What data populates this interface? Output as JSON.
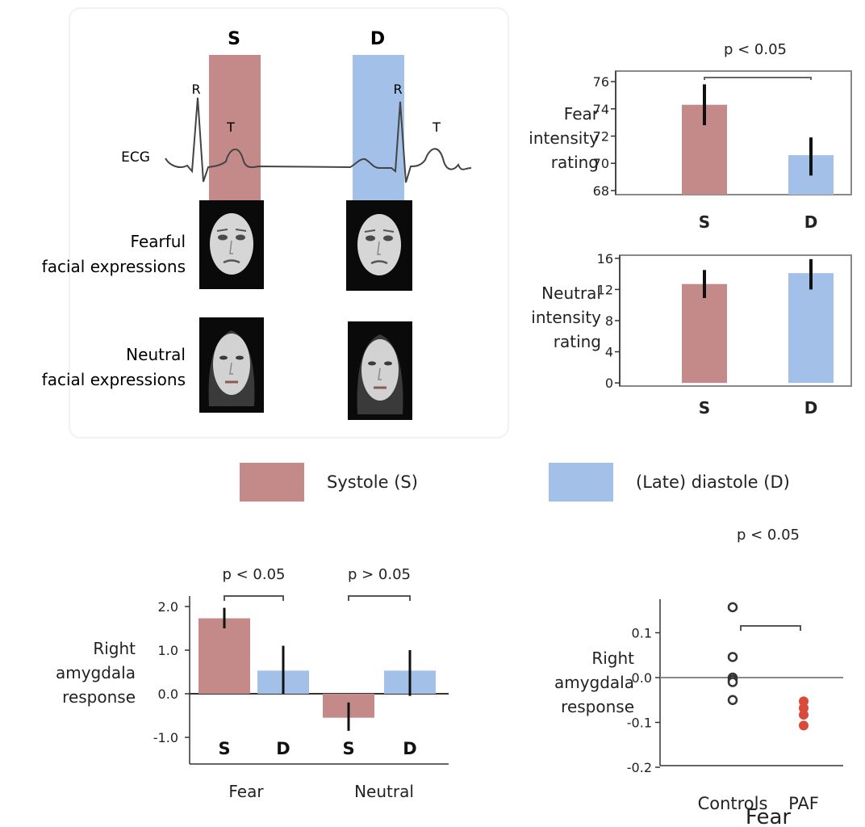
{
  "colors": {
    "systole": "#c48a8a",
    "diastole": "#a3c0e8",
    "paf": "#d94a3a",
    "axis": "#333333",
    "grid_box": "#888888"
  },
  "legend": {
    "systole_label": "Systole (S)",
    "diastole_label": "(Late) diastole (D)"
  },
  "ecg_panel": {
    "systole_letter": "S",
    "diastole_letter": "D",
    "ecg_label": "ECG",
    "r_label_1": "R",
    "t_label_1": "T",
    "r_label_2": "R",
    "t_label_2": "T",
    "fearful_line1": "Fearful",
    "fearful_line2": "facial expressions",
    "neutral_line1": "Neutral",
    "neutral_line2": "facial expressions",
    "face_icons": [
      "fearful-face-icon",
      "neutral-face-icon"
    ]
  },
  "chart_data": [
    {
      "type": "bar",
      "id": "fear-rating",
      "categories": [
        "S",
        "D"
      ],
      "values": [
        74.3,
        70.6
      ],
      "errors": [
        [
          72.8,
          75.8
        ],
        [
          69.1,
          71.9
        ]
      ],
      "ylabel": [
        "Fear",
        "intensity",
        "rating"
      ],
      "yticks": [
        "68",
        "70",
        "72",
        "74",
        "76"
      ],
      "ylim": [
        67.7,
        76.3
      ],
      "annotation": "p < 0.05",
      "colors": [
        "#c48a8a",
        "#a3c0e8"
      ]
    },
    {
      "type": "bar",
      "id": "neutral-rating",
      "categories": [
        "S",
        "D"
      ],
      "values": [
        12.7,
        14.1
      ],
      "errors": [
        [
          10.9,
          14.5
        ],
        [
          12.0,
          15.9
        ]
      ],
      "ylabel": [
        "Neutral",
        "intensity",
        "rating"
      ],
      "yticks": [
        "0",
        "4",
        "8",
        "12",
        "16"
      ],
      "ylim": [
        -0.4,
        16.4
      ],
      "colors": [
        "#c48a8a",
        "#a3c0e8"
      ]
    },
    {
      "type": "bar",
      "id": "amygdala-conditions",
      "groups": [
        "Fear",
        "Neutral"
      ],
      "categories": [
        "S",
        "D",
        "S",
        "D"
      ],
      "values": [
        1.73,
        0.53,
        -0.55,
        0.53
      ],
      "errors": [
        [
          1.5,
          1.97
        ],
        [
          0.0,
          1.1
        ],
        [
          -0.85,
          -0.2
        ],
        [
          -0.05,
          1.0
        ]
      ],
      "ylabel": [
        "Right",
        "amygdala",
        "response"
      ],
      "yticks": [
        "2.0",
        "1.0",
        "0.0",
        "-1.0"
      ],
      "ylim": [
        -1.6,
        2.3
      ],
      "annotations": [
        "p < 0.05",
        "p > 0.05"
      ],
      "colors": [
        "#c48a8a",
        "#a3c0e8",
        "#c48a8a",
        "#a3c0e8"
      ]
    },
    {
      "type": "scatter",
      "id": "controls-vs-paf",
      "categories": [
        "Controls",
        "PAF"
      ],
      "xlabel": "Fear",
      "ylabel": [
        "Right",
        "amygdala",
        "response"
      ],
      "yticks": [
        "0.1",
        "0.0",
        "-0.1",
        "-0.2"
      ],
      "ylim": [
        -0.22,
        0.17
      ],
      "annotation": "p < 0.05",
      "series": [
        {
          "group": "Controls",
          "values": [
            0.157,
            0.046,
            0.0,
            -0.005,
            -0.01,
            -0.05
          ],
          "style": "open"
        },
        {
          "group": "PAF",
          "values": [
            -0.053,
            -0.068,
            -0.083,
            -0.107
          ],
          "style": "filled"
        }
      ]
    }
  ]
}
